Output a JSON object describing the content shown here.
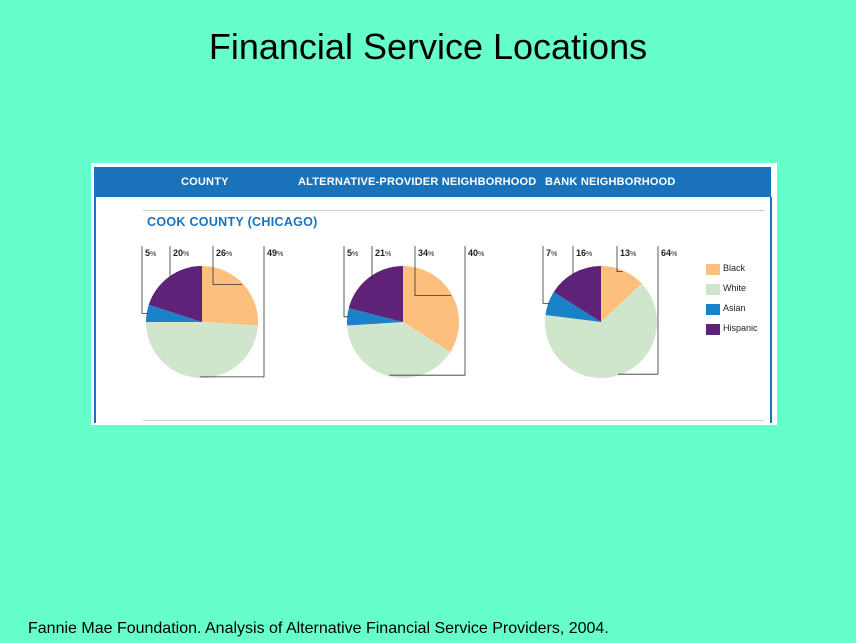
{
  "slide": {
    "title": "Financial Service Locations",
    "source": "Fannie Mae Foundation.  Analysis of Alternative Financial Service Providers, 2004."
  },
  "figure": {
    "header": {
      "county": "COUNTY",
      "alt_provider": "ALTERNATIVE-PROVIDER NEIGHBORHOOD",
      "bank": "BANK NEIGHBORHOOD"
    },
    "county_name": "COOK COUNTY (CHICAGO)",
    "percent_sign": "%"
  },
  "colors": {
    "Black": "#fcbf7e",
    "White": "#cfe6cc",
    "Asian": "#1a82c9",
    "Hispanic": "#5e2378",
    "header_bg": "#1a72bb",
    "slide_bg": "#66ffcc"
  },
  "chart_data": {
    "type": "pie",
    "title": "COOK COUNTY (CHICAGO)",
    "categories": [
      "Black",
      "White",
      "Asian",
      "Hispanic"
    ],
    "legend_position": "right",
    "pies": [
      {
        "name": "COUNTY",
        "values": {
          "Black": 26,
          "White": 49,
          "Asian": 5,
          "Hispanic": 20
        }
      },
      {
        "name": "ALTERNATIVE-PROVIDER NEIGHBORHOOD",
        "values": {
          "Black": 34,
          "White": 40,
          "Asian": 5,
          "Hispanic": 21
        }
      },
      {
        "name": "BANK NEIGHBORHOOD",
        "values": {
          "Black": 13,
          "White": 64,
          "Asian": 7,
          "Hispanic": 16
        }
      }
    ],
    "label_order": [
      "Asian",
      "Hispanic",
      "Black",
      "White"
    ]
  }
}
